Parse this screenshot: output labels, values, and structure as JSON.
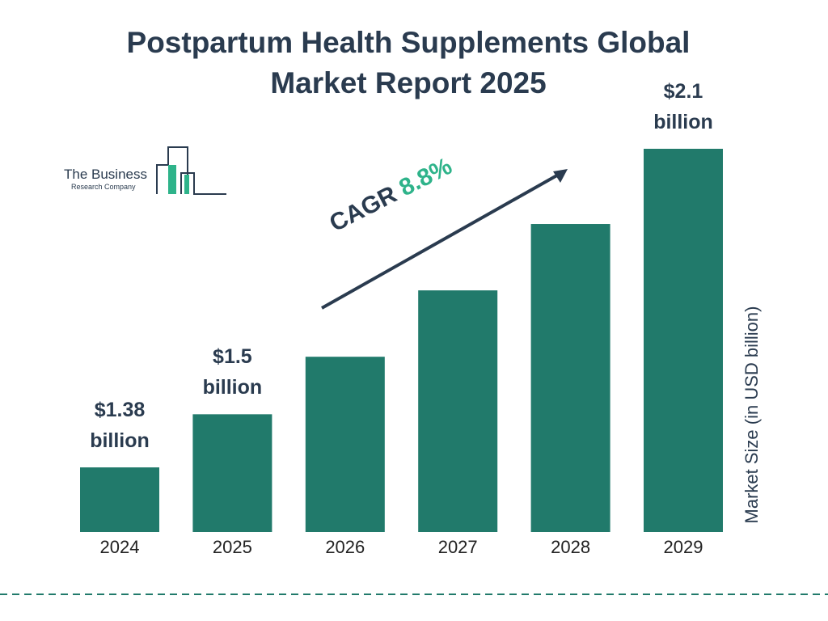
{
  "chart_data": {
    "type": "bar",
    "title": "Postpartum Health Supplements Global Market Report 2025",
    "y_label": "Market Size (in USD billion)",
    "categories": [
      "2024",
      "2025",
      "2026",
      "2027",
      "2028",
      "2029"
    ],
    "values": [
      1.38,
      1.5,
      1.63,
      1.78,
      1.93,
      2.1
    ],
    "value_labels": [
      "$1.38 billion",
      "$1.5 billion",
      null,
      null,
      null,
      "$2.1 billion"
    ],
    "color": "#217a6b",
    "annotations": [
      "CAGR",
      "8.8%"
    ]
  },
  "logo": {
    "line1": "The Business",
    "line2": "Research Company"
  }
}
